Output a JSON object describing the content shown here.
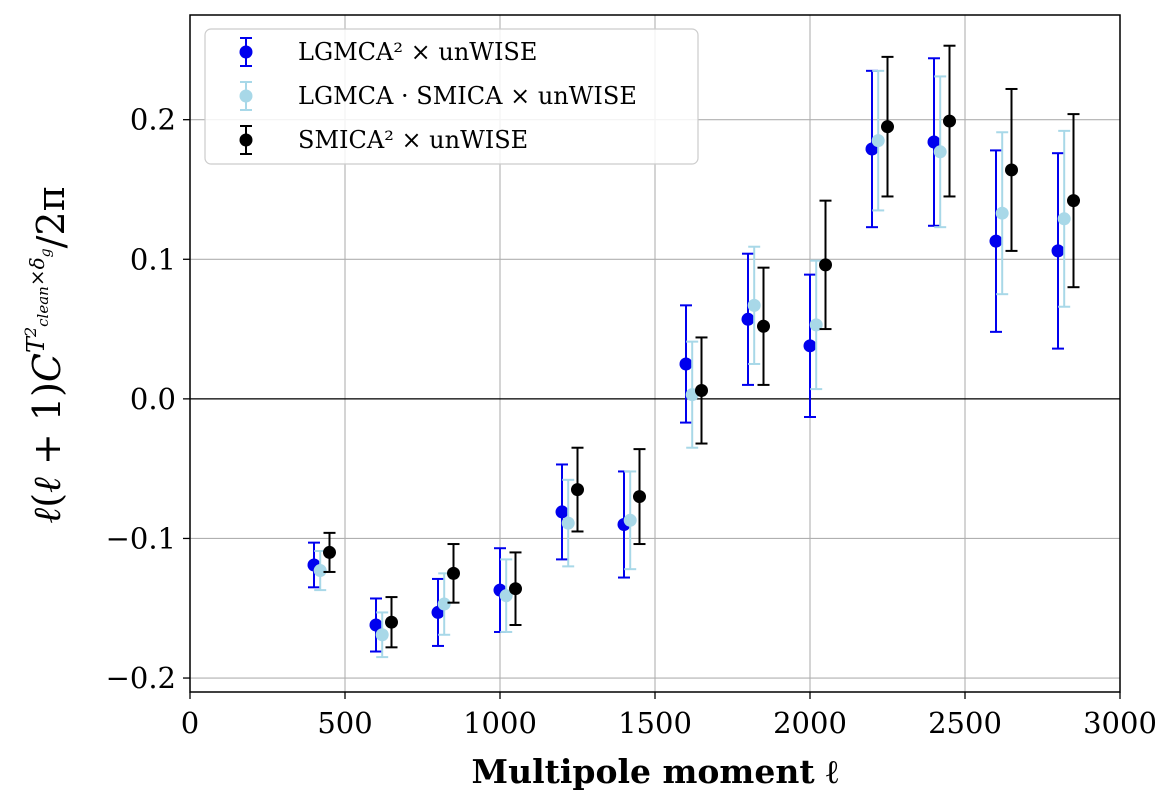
{
  "chart_data": {
    "type": "scatter",
    "errorbars": true,
    "xlabel": "Multipole moment ℓ",
    "ylabel": "ℓ(ℓ + 1)C_ℓ^{T²_clean × δ_g} / 2π",
    "xlim": [
      0,
      3000
    ],
    "ylim": [
      -0.21,
      0.275
    ],
    "xticks": [
      0,
      500,
      1000,
      1500,
      2000,
      2500,
      3000
    ],
    "xtick_labels": [
      "0",
      "500",
      "1000",
      "1500",
      "2000",
      "2500",
      "3000"
    ],
    "yticks": [
      -0.2,
      -0.1,
      0.0,
      0.1,
      0.2
    ],
    "ytick_labels": [
      "−0.2",
      "−0.1",
      "0.0",
      "0.1",
      "0.2"
    ],
    "grid": true,
    "zero_line": true,
    "legend_position": "top-left",
    "series": [
      {
        "name": "LGMCA² × unWISE",
        "color": "#0000ee",
        "x": [
          400,
          600,
          800,
          1000,
          1200,
          1400,
          1600,
          1800,
          2000,
          2200,
          2400,
          2600,
          2800
        ],
        "y": [
          -0.119,
          -0.162,
          -0.153,
          -0.137,
          -0.081,
          -0.09,
          0.025,
          0.057,
          0.038,
          0.179,
          0.184,
          0.113,
          0.106
        ],
        "yerr": [
          0.016,
          0.019,
          0.024,
          0.03,
          0.034,
          0.038,
          0.042,
          0.047,
          0.051,
          0.056,
          0.06,
          0.065,
          0.07
        ]
      },
      {
        "name": "LGMCA · SMICA × unWISE",
        "color": "#a8d8e8",
        "x": [
          420,
          620,
          820,
          1020,
          1220,
          1420,
          1620,
          1820,
          2020,
          2220,
          2420,
          2620,
          2820
        ],
        "y": [
          -0.123,
          -0.169,
          -0.147,
          -0.141,
          -0.089,
          -0.087,
          0.003,
          0.067,
          0.053,
          0.185,
          0.177,
          0.133,
          0.129
        ],
        "yerr": [
          0.014,
          0.016,
          0.022,
          0.026,
          0.031,
          0.035,
          0.038,
          0.042,
          0.046,
          0.05,
          0.054,
          0.058,
          0.063
        ]
      },
      {
        "name": "SMICA² × unWISE",
        "color": "#000000",
        "x": [
          450,
          650,
          850,
          1050,
          1250,
          1450,
          1650,
          1850,
          2050,
          2250,
          2450,
          2650,
          2850
        ],
        "y": [
          -0.11,
          -0.16,
          -0.125,
          -0.136,
          -0.065,
          -0.07,
          0.006,
          0.052,
          0.096,
          0.195,
          0.199,
          0.164,
          0.142
        ],
        "yerr": [
          0.014,
          0.018,
          0.021,
          0.026,
          0.03,
          0.034,
          0.038,
          0.042,
          0.046,
          0.05,
          0.054,
          0.058,
          0.062
        ]
      }
    ]
  }
}
